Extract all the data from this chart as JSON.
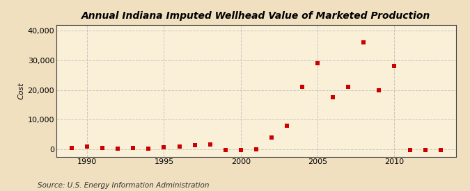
{
  "title": "Annual Indiana Imputed Wellhead Value of Marketed Production",
  "ylabel": "Cost",
  "source": "Source: U.S. Energy Information Administration",
  "background_color": "#f0e0c0",
  "plot_background_color": "#faf0d8",
  "grid_color": "#bbbbbb",
  "marker_color": "#cc0000",
  "years": [
    1989,
    1990,
    1991,
    1992,
    1993,
    1994,
    1995,
    1996,
    1997,
    1998,
    1999,
    2000,
    2001,
    2002,
    2003,
    2004,
    2005,
    2006,
    2007,
    2008,
    2009,
    2010,
    2011,
    2012,
    2013
  ],
  "values": [
    500,
    900,
    500,
    300,
    400,
    200,
    700,
    1000,
    1300,
    1500,
    -300,
    -200,
    -100,
    4000,
    8000,
    21000,
    29000,
    17500,
    21000,
    36000,
    20000,
    28000,
    -200,
    -300,
    -200
  ],
  "xlim": [
    1988.0,
    2014.0
  ],
  "ylim": [
    -2500,
    42000
  ],
  "yticks": [
    0,
    10000,
    20000,
    30000,
    40000
  ],
  "xticks": [
    1990,
    1995,
    2000,
    2005,
    2010
  ],
  "title_fontsize": 10,
  "ylabel_fontsize": 8,
  "tick_labelsize": 8,
  "source_fontsize": 7.5,
  "marker_size": 16
}
